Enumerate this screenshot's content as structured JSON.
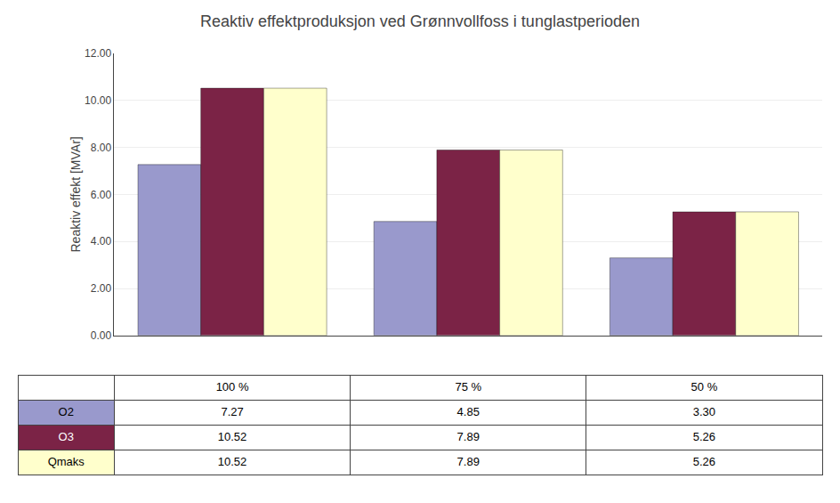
{
  "chart_data": {
    "type": "bar",
    "title": "Reaktiv effektproduksjon ved Grønnvollfoss i tunglastperioden",
    "ylabel": "Reaktiv effekt [MVAr]",
    "categories": [
      "100 %",
      "75 %",
      "50 %"
    ],
    "series": [
      {
        "name": "O2",
        "color": "#9999CC",
        "values": [
          7.27,
          4.85,
          3.3
        ],
        "value_labels": [
          "7.27",
          "4.85",
          "3.30"
        ]
      },
      {
        "name": "O3",
        "color": "#7B2346",
        "values": [
          10.52,
          7.89,
          5.26
        ],
        "value_labels": [
          "10.52",
          "7.89",
          "5.26"
        ]
      },
      {
        "name": "Qmaks",
        "color": "#FFFFCC",
        "values": [
          10.52,
          7.89,
          5.26
        ],
        "value_labels": [
          "10.52",
          "7.89",
          "5.26"
        ]
      }
    ],
    "ylim": [
      0,
      12.0
    ],
    "yticks": [
      {
        "value": 0,
        "label": "0.00"
      },
      {
        "value": 2,
        "label": "2.00"
      },
      {
        "value": 4,
        "label": "4.00"
      },
      {
        "value": 6,
        "label": "6.00"
      },
      {
        "value": 8,
        "label": "8.00"
      },
      {
        "value": 10,
        "label": "10.00"
      },
      {
        "value": 12,
        "label": "12.00"
      }
    ],
    "grid": true,
    "data_labels": true,
    "tick_labels": "y"
  }
}
